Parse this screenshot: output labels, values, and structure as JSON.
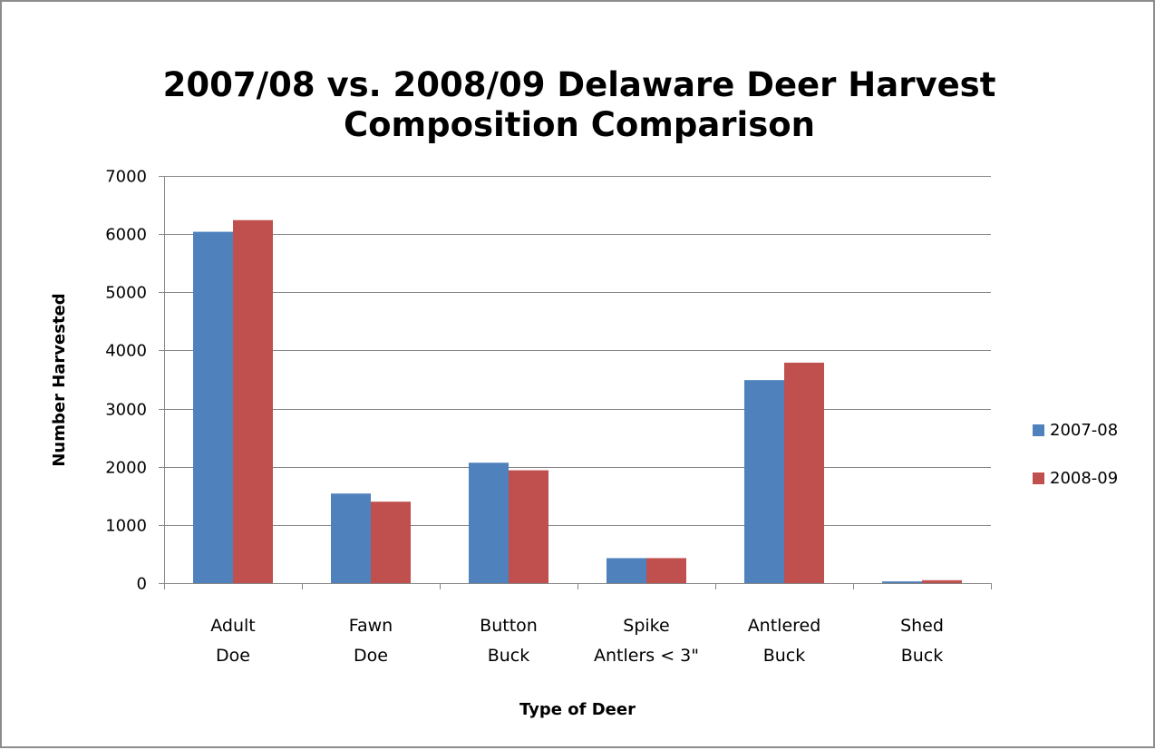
{
  "chart_data": {
    "type": "bar",
    "title": "2007/08 vs. 2008/09 Delaware Deer Harvest Composition Comparison",
    "title_lines": [
      "2007/08 vs. 2008/09 Delaware Deer Harvest",
      "Composition Comparison"
    ],
    "xlabel": "Type of Deer",
    "ylabel": "Number Harvested",
    "categories": [
      [
        "Adult",
        "Doe"
      ],
      [
        "Fawn",
        "Doe"
      ],
      [
        "Button",
        "Buck"
      ],
      [
        "Spike",
        "Antlers < 3\""
      ],
      [
        "Antlered",
        "Buck"
      ],
      [
        "Shed",
        "Buck"
      ]
    ],
    "series": [
      {
        "name": "2007-08",
        "color": "#4f81bd",
        "values": [
          6040,
          1540,
          2070,
          430,
          3490,
          30
        ]
      },
      {
        "name": "2008-09",
        "color": "#c0504d",
        "values": [
          6240,
          1400,
          1940,
          430,
          3790,
          50
        ]
      }
    ],
    "ylim": [
      0,
      7000
    ],
    "yticks": [
      0,
      1000,
      2000,
      3000,
      4000,
      5000,
      6000,
      7000
    ],
    "grid": true,
    "legend_position": "right"
  }
}
